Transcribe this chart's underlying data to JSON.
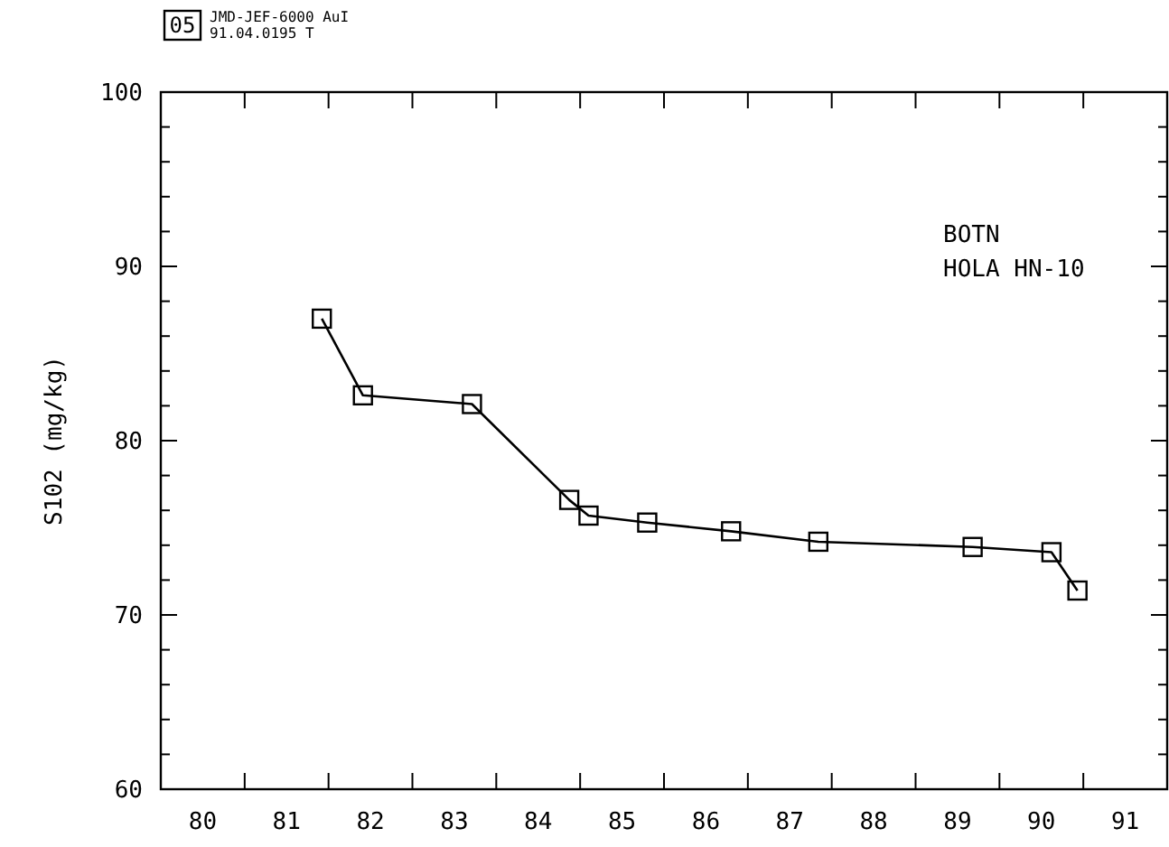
{
  "chart_data": {
    "type": "line",
    "ylabel": "S102 (mg/kg)",
    "annotations": [
      "05",
      "JMD-JEF-6000 AuI",
      "91.04.0195 T",
      "BOTN",
      "HOLA HN-10"
    ],
    "x": [
      81.92,
      82.41,
      83.71,
      84.87,
      85.1,
      85.8,
      86.8,
      87.84,
      89.68,
      90.62,
      90.93
    ],
    "series": [
      {
        "color": "#000000",
        "values": [
          87.0,
          82.6,
          82.1,
          76.6,
          75.7,
          75.3,
          74.8,
          74.2,
          73.9,
          73.6,
          71.4
        ]
      }
    ],
    "xlim": [
      80,
      92
    ],
    "xticks": [
      {
        "value": 80.5,
        "label": "80"
      },
      {
        "value": 81.5,
        "label": "81"
      },
      {
        "value": 82.5,
        "label": "82"
      },
      {
        "value": 83.5,
        "label": "83"
      },
      {
        "value": 84.5,
        "label": "84"
      },
      {
        "value": 85.5,
        "label": "85"
      },
      {
        "value": 86.5,
        "label": "86"
      },
      {
        "value": 87.5,
        "label": "87"
      },
      {
        "value": 88.5,
        "label": "88"
      },
      {
        "value": 89.5,
        "label": "89"
      },
      {
        "value": 90.5,
        "label": "90"
      },
      {
        "value": 91.5,
        "label": "91"
      },
      {
        "value": 81,
        "label": null
      },
      {
        "value": 82,
        "label": null
      },
      {
        "value": 83,
        "label": null
      },
      {
        "value": 84,
        "label": null
      },
      {
        "value": 85,
        "label": null
      },
      {
        "value": 86,
        "label": null
      },
      {
        "value": 87,
        "label": null
      },
      {
        "value": 88,
        "label": null
      },
      {
        "value": 89,
        "label": null
      },
      {
        "value": 90,
        "label": null
      },
      {
        "value": 91,
        "label": null
      }
    ],
    "ylim": [
      60,
      100
    ],
    "yticks": [
      60,
      70,
      80,
      90,
      100,
      {
        "value": 62,
        "label": null
      },
      {
        "value": 64,
        "label": null
      },
      {
        "value": 66,
        "label": null
      },
      {
        "value": 68,
        "label": null
      },
      {
        "value": 72,
        "label": null
      },
      {
        "value": 74,
        "label": null
      },
      {
        "value": 76,
        "label": null
      },
      {
        "value": 78,
        "label": null
      },
      {
        "value": 82,
        "label": null
      },
      {
        "value": 84,
        "label": null
      },
      {
        "value": 86,
        "label": null
      },
      {
        "value": 88,
        "label": null
      },
      {
        "value": 92,
        "label": null
      },
      {
        "value": 94,
        "label": null
      },
      {
        "value": 96,
        "label": null
      },
      {
        "value": 98,
        "label": null
      }
    ],
    "marker": "square",
    "line_style": "solid"
  }
}
